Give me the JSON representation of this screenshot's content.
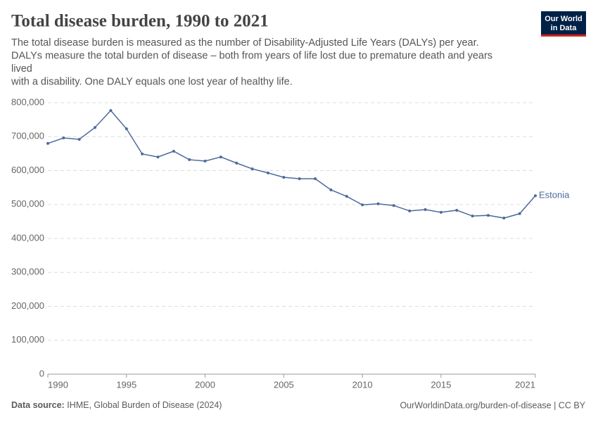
{
  "chart_data": {
    "type": "line",
    "title": "Total disease burden, 1990 to 2021",
    "subtitle": [
      "The total disease burden is measured as the number of Disability-Adjusted Life Years (DALYs) per year.",
      "DALYs measure the total burden of disease – both from years of life lost due to premature death and years",
      "lived",
      "with a disability. One DALY equals one lost year of healthy life."
    ],
    "logo": [
      "Our World",
      "in Data"
    ],
    "x": [
      1990,
      1991,
      1992,
      1993,
      1994,
      1995,
      1996,
      1997,
      1998,
      1999,
      2000,
      2001,
      2002,
      2003,
      2004,
      2005,
      2006,
      2007,
      2008,
      2009,
      2010,
      2011,
      2012,
      2013,
      2014,
      2015,
      2016,
      2017,
      2018,
      2019,
      2020,
      2021
    ],
    "series": [
      {
        "name": "Estonia",
        "color": "#4c6a9c",
        "values": [
          680000,
          696000,
          692000,
          727000,
          777000,
          723000,
          649000,
          640000,
          657000,
          632000,
          628000,
          640000,
          622000,
          605000,
          593000,
          580000,
          576000,
          576000,
          543000,
          524000,
          499000,
          502000,
          497000,
          481000,
          485000,
          477000,
          483000,
          466000,
          468000,
          460000,
          473000,
          526000
        ]
      }
    ],
    "xlim": [
      1990,
      2021
    ],
    "xticks": [
      1990,
      1995,
      2000,
      2005,
      2010,
      2015,
      2021
    ],
    "ylim": [
      0,
      800000
    ],
    "yticks": [
      0,
      {
        "value": 100000,
        "label": "100,000"
      },
      {
        "value": 200000,
        "label": "200,000"
      },
      {
        "value": 300000,
        "label": "300,000"
      },
      {
        "value": 400000,
        "label": "400,000"
      },
      {
        "value": 500000,
        "label": "500,000"
      },
      {
        "value": 600000,
        "label": "600,000"
      },
      {
        "value": 700000,
        "label": "700,000"
      },
      {
        "value": 800000,
        "label": "800,000"
      }
    ],
    "grid": true,
    "source_label": "Data source:",
    "source": "IHME, Global Burden of Disease (2024)",
    "url": "OurWorldinData.org/burden-of-disease | CC BY"
  }
}
